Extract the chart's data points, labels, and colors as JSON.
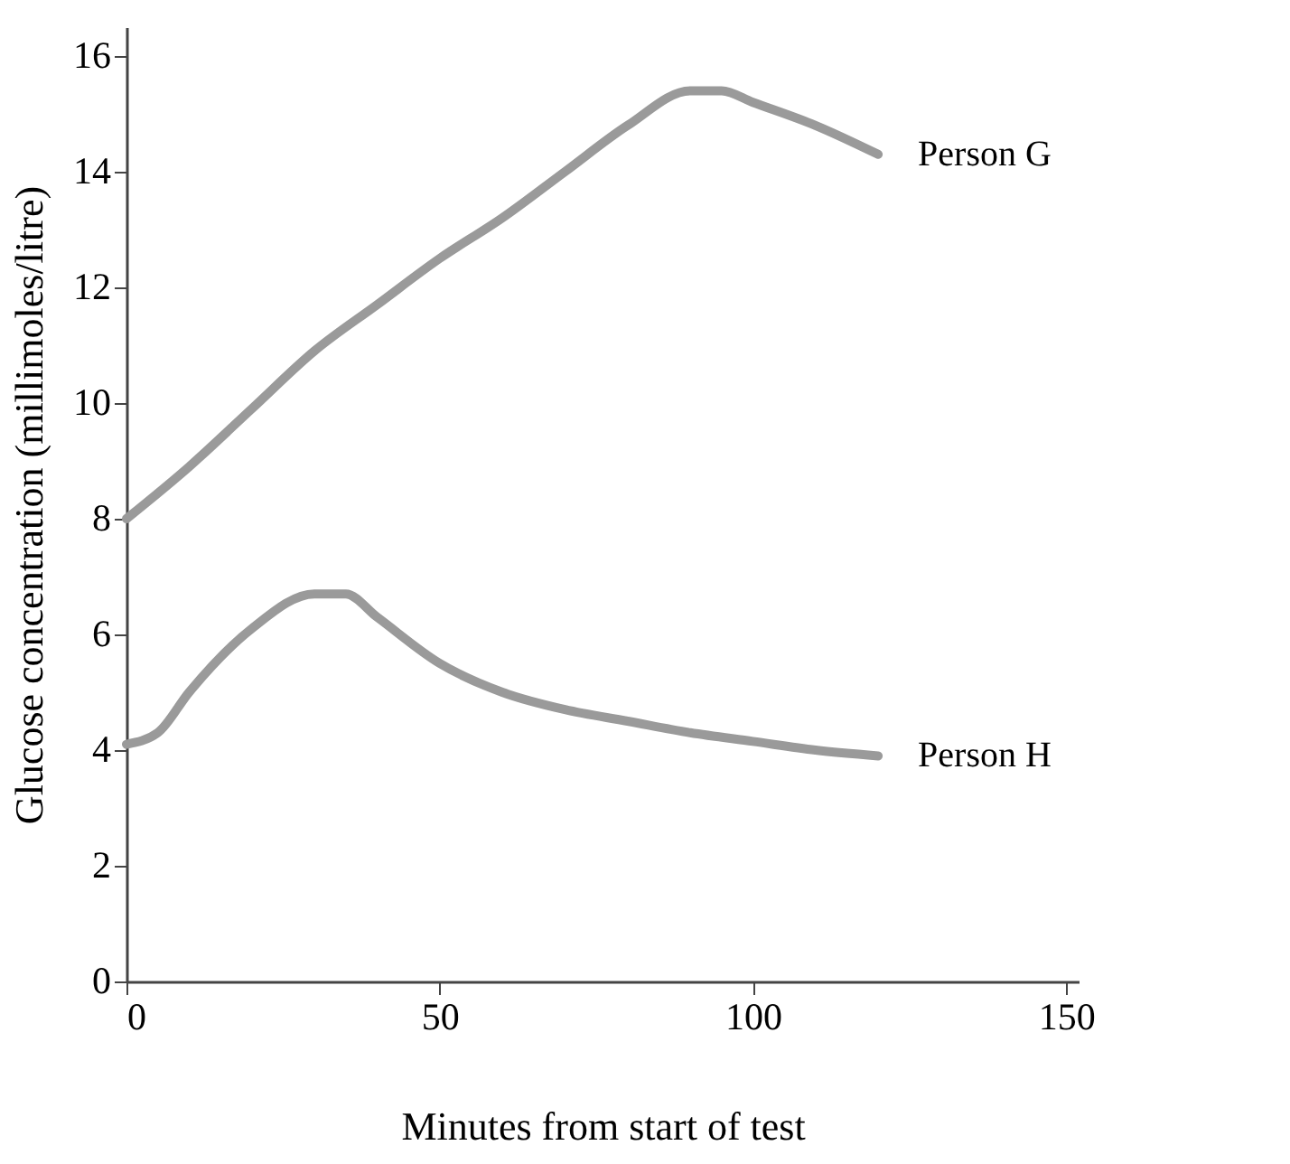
{
  "chart_data": {
    "type": "line",
    "xlabel": "Minutes from start of test",
    "ylabel": "Glucose concentration (millimoles/litre)",
    "xlim": [
      0,
      152
    ],
    "ylim": [
      0,
      16.5
    ],
    "xticks": [
      0,
      50,
      100,
      150
    ],
    "yticks": [
      0,
      2,
      4,
      6,
      8,
      10,
      12,
      14,
      16
    ],
    "grid": false,
    "legend": false,
    "line_style": "solid",
    "marker": "none",
    "series": [
      {
        "name": "Person G",
        "color": "#9a9a9a",
        "x": [
          0,
          10,
          20,
          30,
          40,
          50,
          60,
          70,
          80,
          90,
          95,
          100,
          110,
          120
        ],
        "values": [
          8.0,
          8.9,
          9.9,
          10.9,
          11.7,
          12.5,
          13.2,
          14.0,
          14.8,
          15.4,
          15.4,
          15.2,
          14.8,
          14.3
        ]
      },
      {
        "name": "Person H",
        "color": "#9a9a9a",
        "x": [
          0,
          5,
          10,
          20,
          30,
          35,
          40,
          50,
          60,
          70,
          80,
          90,
          100,
          110,
          120
        ],
        "values": [
          4.1,
          4.3,
          5.0,
          6.1,
          6.7,
          6.7,
          6.3,
          5.5,
          5.0,
          4.7,
          4.5,
          4.3,
          4.15,
          4.0,
          3.9
        ]
      }
    ]
  }
}
